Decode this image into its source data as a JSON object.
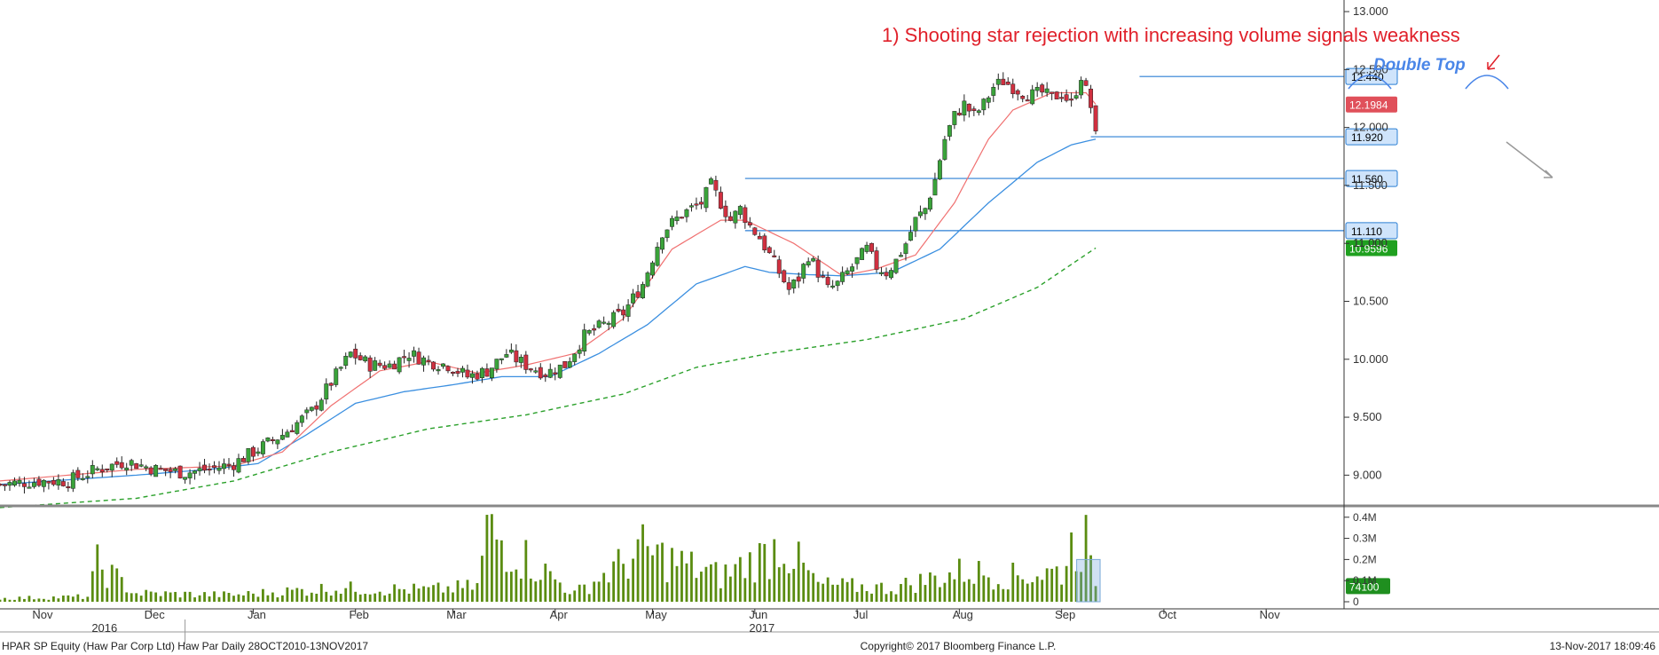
{
  "chart_data": {
    "type": "candlestick",
    "footer": {
      "left": "HPAR SP Equity (Haw Par Corp Ltd) Haw Par   Daily 28OCT2010-13NOV2017",
      "center": "Copyright© 2017 Bloomberg Finance L.P.",
      "right": "13-Nov-2017 18:09:46"
    },
    "x_months": [
      {
        "label": "Nov",
        "x": 0
      },
      {
        "label": "Dec",
        "x": 23
      },
      {
        "label": "Jan",
        "x": 44
      },
      {
        "label": "Feb",
        "x": 65
      },
      {
        "label": "Mar",
        "x": 85
      },
      {
        "label": "Apr",
        "x": 106
      },
      {
        "label": "May",
        "x": 126
      },
      {
        "label": "Jun",
        "x": 147
      },
      {
        "label": "Jul",
        "x": 168
      },
      {
        "label": "Aug",
        "x": 189
      },
      {
        "label": "Sep",
        "x": 210
      },
      {
        "label": "Oct",
        "x": 231
      },
      {
        "label": "Nov",
        "x": 252
      }
    ],
    "x_years": [
      {
        "label": "2016",
        "x": 12
      },
      {
        "label": "2017",
        "x": 147
      }
    ],
    "xlim": [
      -8,
      268
    ],
    "ylim": [
      8.75,
      13.1
    ],
    "yticks": [
      9.0,
      9.5,
      10.0,
      10.5,
      11.0,
      11.5,
      12.0,
      12.5,
      13.0
    ],
    "ytick_labels": [
      "9.000",
      "9.500",
      "10.000",
      "10.500",
      "11.000",
      "11.500",
      "12.000",
      "12.500",
      "13.000"
    ],
    "vol_ylim": [
      0,
      0.42
    ],
    "vol_ticks": [
      0,
      0.1,
      0.2,
      0.3,
      0.4
    ],
    "vol_tick_labels": [
      "0",
      "0.1M",
      "0.2M",
      "0.3M",
      "0.4M"
    ],
    "last_volume_label": "74100",
    "last_volume": 0.0741,
    "horizontal_levels": [
      {
        "value": 12.44,
        "label": "12.440",
        "color": "#2b7fd4",
        "x_start": 226
      },
      {
        "value": 11.92,
        "label": "11.920",
        "color": "#2b7fd4",
        "x_start": 216
      },
      {
        "value": 11.56,
        "label": "11.560",
        "color": "#2b7fd4",
        "x_start": 145
      },
      {
        "value": 11.11,
        "label": "11.110",
        "color": "#2b7fd4",
        "x_start": 145
      }
    ],
    "price_labels": [
      {
        "value": 12.1984,
        "label": "12.1984",
        "color": "#e0505a"
      },
      {
        "value": 10.9596,
        "label": "10.9596",
        "color": "#1fa01f"
      }
    ],
    "annotations": {
      "main": "1) Shooting star rejection with increasing volume signals weakness",
      "pattern": "Double Top"
    },
    "colors": {
      "up": "#3aa33a",
      "down": "#d03040",
      "ma_short": "#f07070",
      "ma_mid": "#3b8fe0",
      "ma_long": "#2aa02a",
      "volume": "#5a8c10",
      "annotation": "#e0202a",
      "pattern": "#4a86e8"
    },
    "anchors": {
      "close": [
        [
          -8,
          8.92
        ],
        [
          0,
          8.95
        ],
        [
          6,
          8.95
        ],
        [
          12,
          9.05
        ],
        [
          18,
          9.12
        ],
        [
          24,
          9.05
        ],
        [
          30,
          9.02
        ],
        [
          36,
          9.06
        ],
        [
          40,
          9.1
        ],
        [
          44,
          9.2
        ],
        [
          50,
          9.35
        ],
        [
          56,
          9.55
        ],
        [
          60,
          9.8
        ],
        [
          64,
          10.05
        ],
        [
          68,
          9.95
        ],
        [
          72,
          9.95
        ],
        [
          76,
          10.05
        ],
        [
          80,
          9.98
        ],
        [
          84,
          9.95
        ],
        [
          88,
          9.85
        ],
        [
          92,
          9.9
        ],
        [
          96,
          10.05
        ],
        [
          100,
          9.95
        ],
        [
          104,
          9.88
        ],
        [
          108,
          9.95
        ],
        [
          112,
          10.2
        ],
        [
          116,
          10.3
        ],
        [
          120,
          10.4
        ],
        [
          124,
          10.65
        ],
        [
          128,
          11.1
        ],
        [
          132,
          11.25
        ],
        [
          136,
          11.35
        ],
        [
          138,
          11.5
        ],
        [
          140,
          11.35
        ],
        [
          142,
          11.2
        ],
        [
          144,
          11.3
        ],
        [
          146,
          11.15
        ],
        [
          148,
          11.05
        ],
        [
          150,
          10.9
        ],
        [
          152,
          10.75
        ],
        [
          154,
          10.6
        ],
        [
          156,
          10.7
        ],
        [
          158,
          10.9
        ],
        [
          160,
          10.75
        ],
        [
          162,
          10.6
        ],
        [
          164,
          10.65
        ],
        [
          166,
          10.75
        ],
        [
          168,
          10.85
        ],
        [
          170,
          10.95
        ],
        [
          172,
          10.8
        ],
        [
          174,
          10.75
        ],
        [
          176,
          10.85
        ],
        [
          178,
          11.0
        ],
        [
          180,
          11.2
        ],
        [
          182,
          11.3
        ],
        [
          184,
          11.55
        ],
        [
          186,
          11.9
        ],
        [
          188,
          12.1
        ],
        [
          190,
          12.2
        ],
        [
          192,
          12.1
        ],
        [
          194,
          12.2
        ],
        [
          196,
          12.35
        ],
        [
          198,
          12.4
        ],
        [
          200,
          12.35
        ],
        [
          202,
          12.3
        ],
        [
          204,
          12.28
        ],
        [
          206,
          12.3
        ],
        [
          208,
          12.25
        ],
        [
          210,
          12.3
        ],
        [
          212,
          12.2
        ],
        [
          214,
          12.45
        ],
        [
          216,
          12.18
        ],
        [
          217,
          11.92
        ]
      ],
      "ma_short": [
        [
          -8,
          8.95
        ],
        [
          20,
          9.05
        ],
        [
          40,
          9.08
        ],
        [
          50,
          9.2
        ],
        [
          60,
          9.6
        ],
        [
          70,
          9.9
        ],
        [
          80,
          9.98
        ],
        [
          90,
          9.88
        ],
        [
          100,
          9.95
        ],
        [
          110,
          10.05
        ],
        [
          120,
          10.35
        ],
        [
          130,
          10.95
        ],
        [
          140,
          11.2
        ],
        [
          145,
          11.2
        ],
        [
          155,
          11.0
        ],
        [
          165,
          10.72
        ],
        [
          172,
          10.78
        ],
        [
          180,
          10.9
        ],
        [
          188,
          11.35
        ],
        [
          195,
          11.9
        ],
        [
          200,
          12.15
        ],
        [
          208,
          12.3
        ],
        [
          215,
          12.3
        ],
        [
          217,
          12.2
        ]
      ],
      "ma_mid": [
        [
          -8,
          8.92
        ],
        [
          20,
          9.0
        ],
        [
          35,
          9.05
        ],
        [
          45,
          9.1
        ],
        [
          55,
          9.35
        ],
        [
          65,
          9.62
        ],
        [
          75,
          9.72
        ],
        [
          85,
          9.78
        ],
        [
          95,
          9.85
        ],
        [
          105,
          9.85
        ],
        [
          115,
          10.05
        ],
        [
          125,
          10.3
        ],
        [
          135,
          10.65
        ],
        [
          145,
          10.8
        ],
        [
          150,
          10.75
        ],
        [
          158,
          10.73
        ],
        [
          165,
          10.72
        ],
        [
          175,
          10.75
        ],
        [
          185,
          10.95
        ],
        [
          195,
          11.35
        ],
        [
          205,
          11.7
        ],
        [
          212,
          11.85
        ],
        [
          217,
          11.9
        ]
      ],
      "ma_long": [
        [
          -8,
          8.72
        ],
        [
          20,
          8.8
        ],
        [
          40,
          8.95
        ],
        [
          60,
          9.2
        ],
        [
          80,
          9.4
        ],
        [
          100,
          9.52
        ],
        [
          120,
          9.7
        ],
        [
          135,
          9.93
        ],
        [
          150,
          10.05
        ],
        [
          170,
          10.17
        ],
        [
          190,
          10.35
        ],
        [
          205,
          10.62
        ],
        [
          217,
          10.96
        ]
      ],
      "volume": [
        [
          -8,
          0.02
        ],
        [
          10,
          0.03
        ],
        [
          12,
          0.22
        ],
        [
          20,
          0.05
        ],
        [
          40,
          0.04
        ],
        [
          60,
          0.08
        ],
        [
          80,
          0.07
        ],
        [
          90,
          0.09
        ],
        [
          92,
          0.42
        ],
        [
          110,
          0.05
        ],
        [
          124,
          0.3
        ],
        [
          140,
          0.15
        ],
        [
          147,
          0.25
        ],
        [
          150,
          0.28
        ],
        [
          152,
          0.36
        ],
        [
          160,
          0.1
        ],
        [
          175,
          0.08
        ],
        [
          190,
          0.18
        ],
        [
          200,
          0.15
        ],
        [
          210,
          0.18
        ],
        [
          212,
          0.33
        ],
        [
          215,
          0.36
        ],
        [
          216,
          0.18
        ],
        [
          217,
          0.0741
        ]
      ]
    }
  }
}
